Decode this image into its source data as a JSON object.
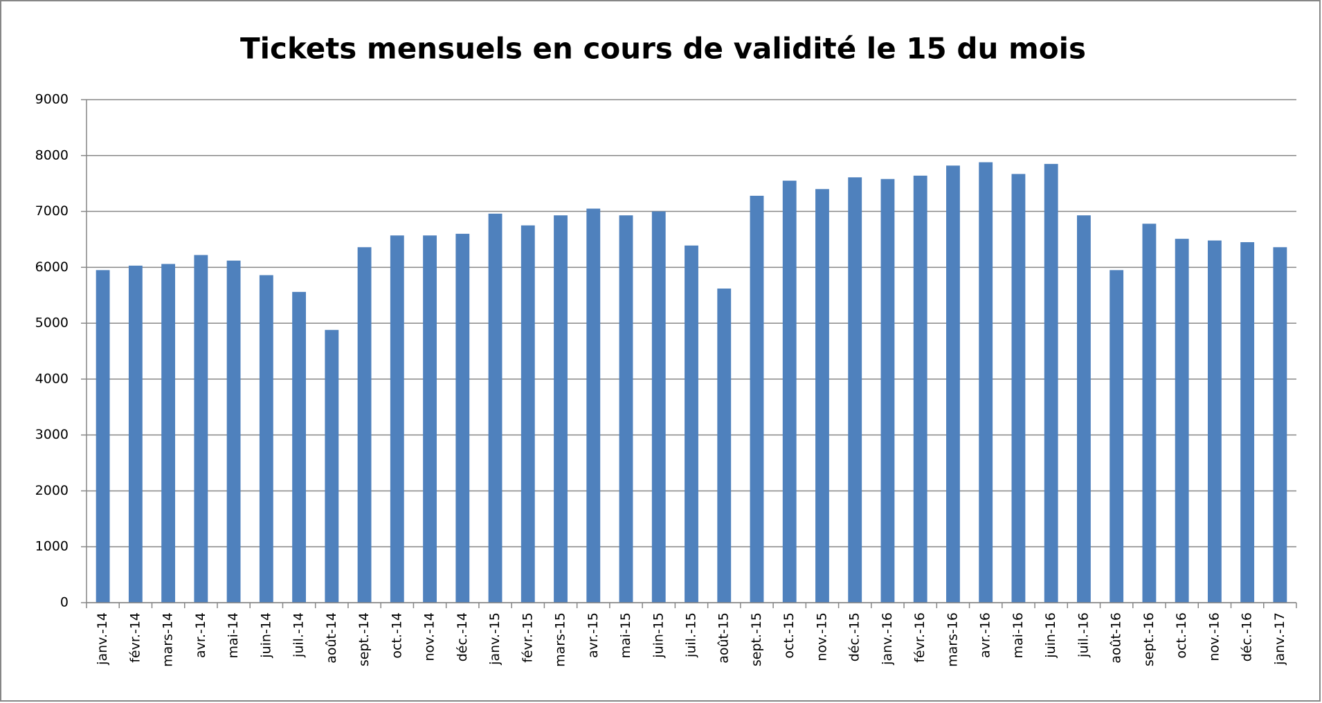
{
  "chart_data": {
    "type": "bar",
    "title": "Tickets mensuels en cours de validité le 15 du mois",
    "categories": [
      "janv.-14",
      "févr.-14",
      "mars-14",
      "avr.-14",
      "mai-14",
      "juin-14",
      "juil.-14",
      "août-14",
      "sept.-14",
      "oct.-14",
      "nov.-14",
      "déc.-14",
      "janv.-15",
      "févr.-15",
      "mars-15",
      "avr.-15",
      "mai-15",
      "juin-15",
      "juil.-15",
      "août-15",
      "sept.-15",
      "oct.-15",
      "nov.-15",
      "déc.-15",
      "janv.-16",
      "févr.-16",
      "mars-16",
      "avr.-16",
      "mai-16",
      "juin-16",
      "juil.-16",
      "août-16",
      "sept.-16",
      "oct.-16",
      "nov.-16",
      "déc.-16",
      "janv.-17"
    ],
    "values": [
      5950,
      6030,
      6060,
      6220,
      6120,
      5860,
      5560,
      4880,
      6360,
      6570,
      6570,
      6600,
      6960,
      6750,
      6930,
      7050,
      6930,
      7000,
      6390,
      5620,
      7280,
      7550,
      7400,
      7610,
      7580,
      7640,
      7820,
      7880,
      7670,
      7850,
      6930,
      5950,
      6780,
      6510,
      6480,
      6450,
      6360
    ],
    "color": "#4f81bd",
    "ylim": [
      0,
      9000
    ],
    "yticks": [
      0,
      1000,
      2000,
      3000,
      4000,
      5000,
      6000,
      7000,
      8000,
      9000
    ],
    "grid": true
  }
}
